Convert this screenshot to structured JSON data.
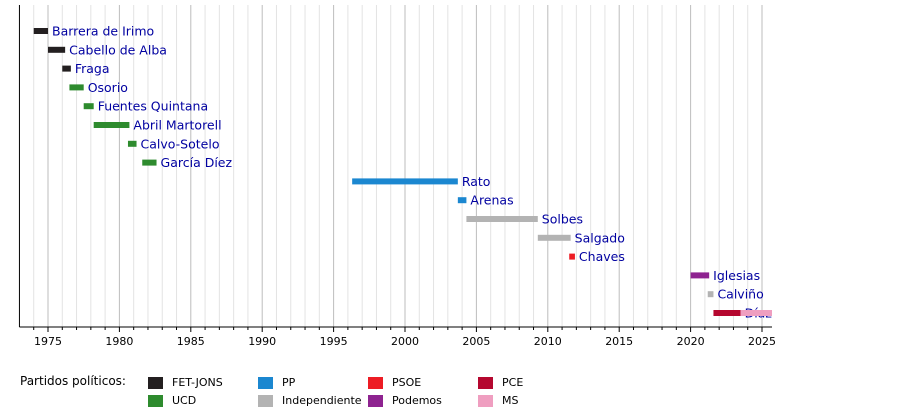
{
  "chart_data": {
    "type": "timeline",
    "x_ticks": [
      1975,
      1980,
      1985,
      1990,
      1995,
      2000,
      2005,
      2010,
      2015,
      2020,
      2025
    ],
    "xlim": [
      1973.0,
      2025.7
    ],
    "grid": true,
    "bars": [
      {
        "name": "Barrera de Irimo",
        "start": 1974.0,
        "end": 1975.0,
        "party": "FET-JONS"
      },
      {
        "name": "Cabello de Alba",
        "start": 1975.0,
        "end": 1976.2,
        "party": "FET-JONS"
      },
      {
        "name": "Fraga",
        "start": 1976.0,
        "end": 1976.6,
        "party": "FET-JONS"
      },
      {
        "name": "Osorio",
        "start": 1976.5,
        "end": 1977.5,
        "party": "UCD"
      },
      {
        "name": "Fuentes Quintana",
        "start": 1977.5,
        "end": 1978.2,
        "party": "UCD"
      },
      {
        "name": "Abril Martorell",
        "start": 1978.2,
        "end": 1980.7,
        "party": "UCD"
      },
      {
        "name": "Calvo-Sotelo",
        "start": 1980.6,
        "end": 1981.2,
        "party": "UCD"
      },
      {
        "name": "García Díez",
        "start": 1981.6,
        "end": 1982.6,
        "party": "UCD"
      },
      {
        "name": "Rato",
        "start": 1996.3,
        "end": 2003.7,
        "party": "PP"
      },
      {
        "name": "Arenas",
        "start": 2003.7,
        "end": 2004.3,
        "party": "PP"
      },
      {
        "name": "Solbes",
        "start": 2004.3,
        "end": 2009.3,
        "party": "Independiente"
      },
      {
        "name": "Salgado",
        "start": 2009.3,
        "end": 2011.6,
        "party": "Independiente"
      },
      {
        "name": "Chaves",
        "start": 2011.5,
        "end": 2011.9,
        "party": "PSOE"
      },
      {
        "name": "Iglesias",
        "start": 2020.0,
        "end": 2021.3,
        "party": "Podemos"
      },
      {
        "name": "Calviño",
        "start": 2021.2,
        "end": 2021.6,
        "party": "Independiente"
      },
      {
        "name": "Díaz",
        "start": 2021.6,
        "end": 2023.5,
        "party": "PCE"
      },
      {
        "name": "Díaz",
        "start": 2023.5,
        "end": 2025.7,
        "party": "MS",
        "label": false
      }
    ]
  },
  "legend": {
    "title": "Partidos políticos:",
    "items": [
      {
        "label": "FET-JONS",
        "color": "#231f20"
      },
      {
        "label": "UCD",
        "color": "#2e8b2e"
      },
      {
        "label": "PP",
        "color": "#1b87d0"
      },
      {
        "label": "Independiente",
        "color": "#b3b3b3"
      },
      {
        "label": "PSOE",
        "color": "#ed1c24"
      },
      {
        "label": "Podemos",
        "color": "#8e2390"
      },
      {
        "label": "PCE",
        "color": "#b5072f"
      },
      {
        "label": "MS",
        "color": "#ef9ec0"
      }
    ]
  }
}
